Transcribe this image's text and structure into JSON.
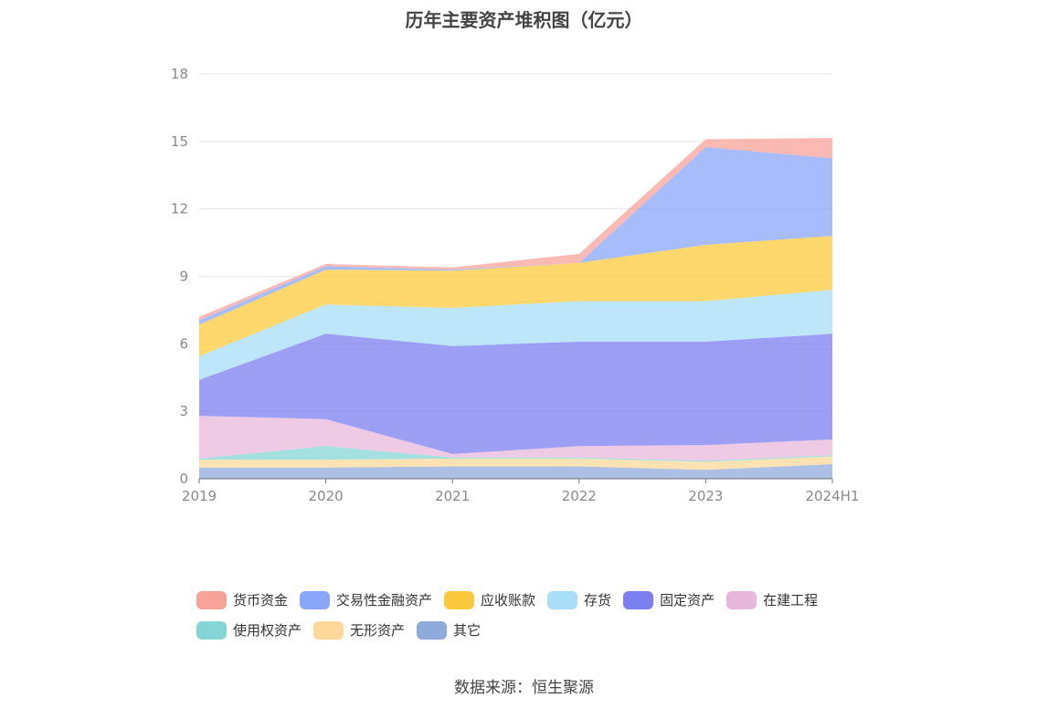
{
  "chart_data": {
    "type": "area",
    "stacked": true,
    "title": "历年主要资产堆积图（亿元）",
    "categories": [
      "2019",
      "2020",
      "2021",
      "2022",
      "2023",
      "2024H1"
    ],
    "ylim": [
      0,
      18
    ],
    "yticks": [
      "0",
      "3",
      "6",
      "9",
      "12",
      "15",
      "18"
    ],
    "grid": true,
    "legend_position": "bottom",
    "series": [
      {
        "name": "其它",
        "color": "#8fabdb",
        "values": [
          0.5,
          0.5,
          0.55,
          0.55,
          0.4,
          0.65
        ]
      },
      {
        "name": "无形资产",
        "color": "#fdd89a",
        "values": [
          0.35,
          0.35,
          0.35,
          0.35,
          0.35,
          0.35
        ]
      },
      {
        "name": "使用权资产",
        "color": "#86d5d6",
        "values": [
          0.05,
          0.6,
          0.05,
          0.05,
          0.05,
          0.05
        ]
      },
      {
        "name": "在建工程",
        "color": "#e8b8dc",
        "values": [
          1.9,
          1.2,
          0.15,
          0.5,
          0.7,
          0.7
        ]
      },
      {
        "name": "固定资产",
        "color": "#7b7ff0",
        "values": [
          1.6,
          3.8,
          4.8,
          4.65,
          4.6,
          4.7
        ]
      },
      {
        "name": "存货",
        "color": "#a8def8",
        "values": [
          1.05,
          1.3,
          1.7,
          1.8,
          1.8,
          1.95
        ]
      },
      {
        "name": "应收账款",
        "color": "#fdc93c",
        "values": [
          1.4,
          1.55,
          1.65,
          1.7,
          2.5,
          2.4
        ]
      },
      {
        "name": "交易性金融资产",
        "color": "#8aa6fa",
        "values": [
          0.2,
          0.15,
          0.05,
          0.0,
          4.35,
          3.45
        ]
      },
      {
        "name": "货币资金",
        "color": "#f8a39a",
        "values": [
          0.15,
          0.1,
          0.1,
          0.4,
          0.35,
          0.9
        ]
      }
    ]
  },
  "legend": {
    "row1": [
      {
        "label": "货币资金",
        "color": "#f8a39a"
      },
      {
        "label": "交易性金融资产",
        "color": "#8aa6fa"
      },
      {
        "label": "应收账款",
        "color": "#fdc93c"
      },
      {
        "label": "存货",
        "color": "#a8def8"
      },
      {
        "label": "固定资产",
        "color": "#7b7ff0"
      },
      {
        "label": "在建工程",
        "color": "#e8b8dc"
      }
    ],
    "row2": [
      {
        "label": "使用权资产",
        "color": "#86d5d6"
      },
      {
        "label": "无形资产",
        "color": "#fdd89a"
      },
      {
        "label": "其它",
        "color": "#8fabdb"
      }
    ]
  },
  "source": "数据来源：恒生聚源"
}
